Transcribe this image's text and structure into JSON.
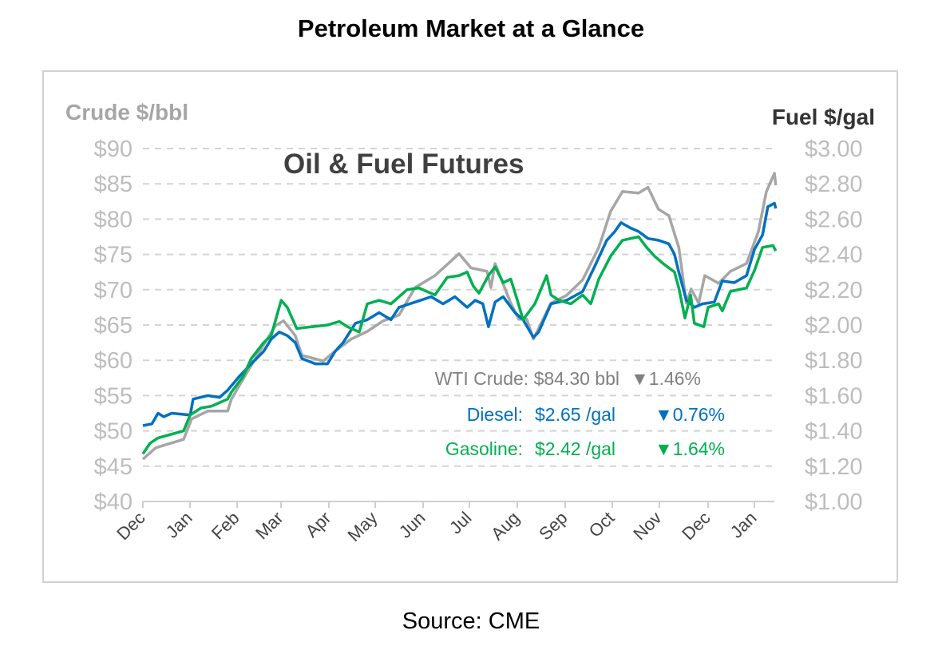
{
  "page_title": "Petroleum Market at a Glance",
  "source": "Source: CME",
  "chart_data": {
    "type": "line",
    "title": "Oil & Fuel Futures",
    "ylabel_left": "Crude $/bbl",
    "ylabel_right": "Fuel $/gal",
    "ylim_left": [
      40,
      90
    ],
    "ylim_right": [
      1.0,
      3.0
    ],
    "yticks_left": [
      "$40",
      "$45",
      "$50",
      "$55",
      "$60",
      "$65",
      "$70",
      "$75",
      "$80",
      "$85",
      "$90"
    ],
    "yticks_right": [
      "$1.00",
      "$1.20",
      "$1.40",
      "$1.60",
      "$1.80",
      "$2.00",
      "$2.20",
      "$2.40",
      "$2.60",
      "$2.80",
      "$3.00"
    ],
    "xticks": [
      "Dec",
      "Jan",
      "Feb",
      "Mar",
      "Apr",
      "May",
      "Jun",
      "Jul",
      "Aug",
      "Sep",
      "Oct",
      "Nov",
      "Dec",
      "Jan"
    ],
    "x_unit": "months since start",
    "grid": true,
    "colors": {
      "crude": "#a6a6a6",
      "diesel": "#0070c0",
      "gasoline": "#00b050"
    },
    "series": [
      {
        "name": "WTI Crude",
        "axis": "left",
        "color": "#a6a6a6",
        "x": [
          0,
          0.27,
          0.86,
          1.03,
          1.37,
          1.79,
          1.87,
          2.21,
          2.55,
          2.8,
          2.97,
          3.22,
          3.36,
          3.81,
          4.06,
          4.4,
          4.74,
          5.08,
          5.41,
          5.75,
          6.17,
          6.68,
          6.93,
          7.27,
          7.35,
          7.44,
          7.77,
          7.94,
          8.11,
          8.25,
          8.62,
          8.95,
          9.29,
          9.63,
          9.88,
          10.13,
          10.47,
          10.67,
          10.89,
          11.11,
          11.32,
          11.48,
          11.58,
          11.74,
          11.87,
          12.16,
          12.41,
          12.75,
          13.0,
          13.17,
          13.34,
          13.37
        ],
        "y": [
          46.0,
          47.6,
          48.8,
          51.7,
          52.8,
          52.8,
          54.5,
          58.4,
          62.2,
          64.9,
          65.6,
          63.5,
          60.7,
          59.9,
          61.3,
          63.0,
          64.1,
          65.6,
          66.4,
          70.3,
          72.0,
          75.1,
          73.1,
          72.6,
          70.3,
          73.7,
          68.1,
          65.8,
          65.8,
          63.0,
          68.1,
          69.2,
          71.4,
          76.0,
          81.1,
          83.9,
          83.7,
          84.5,
          81.4,
          80.5,
          76.0,
          68.1,
          70.1,
          68.1,
          72.0,
          70.9,
          72.6,
          73.7,
          78.2,
          83.9,
          86.5,
          84.8
        ]
      },
      {
        "name": "Diesel",
        "axis": "right",
        "color": "#0070c0",
        "x": [
          0,
          0.19,
          0.32,
          0.44,
          0.61,
          1.0,
          1.06,
          1.37,
          1.62,
          1.79,
          2.04,
          2.29,
          2.55,
          2.71,
          2.88,
          3.05,
          3.22,
          3.36,
          3.64,
          3.9,
          4.06,
          4.23,
          4.49,
          4.74,
          4.99,
          5.24,
          5.41,
          5.75,
          6.09,
          6.34,
          6.59,
          6.85,
          7.02,
          7.18,
          7.3,
          7.44,
          7.61,
          7.86,
          8.03,
          8.25,
          8.36,
          8.62,
          8.95,
          9.29,
          9.54,
          9.8,
          9.97,
          10.1,
          10.3,
          10.47,
          10.67,
          10.89,
          11.11,
          11.23,
          11.32,
          11.48,
          11.65,
          11.82,
          12.07,
          12.24,
          12.49,
          12.75,
          12.92,
          13.09,
          13.2,
          13.34,
          13.37
        ],
        "y": [
          1.43,
          1.44,
          1.5,
          1.48,
          1.5,
          1.49,
          1.58,
          1.6,
          1.59,
          1.63,
          1.71,
          1.78,
          1.85,
          1.92,
          1.96,
          1.94,
          1.9,
          1.81,
          1.78,
          1.78,
          1.85,
          1.9,
          2.01,
          2.03,
          2.07,
          2.03,
          2.1,
          2.13,
          2.16,
          2.12,
          2.16,
          2.1,
          2.14,
          2.12,
          1.99,
          2.13,
          2.16,
          2.07,
          2.03,
          1.93,
          1.96,
          2.12,
          2.14,
          2.19,
          2.33,
          2.48,
          2.53,
          2.58,
          2.55,
          2.53,
          2.49,
          2.48,
          2.46,
          2.4,
          2.3,
          2.14,
          2.1,
          2.12,
          2.13,
          2.25,
          2.24,
          2.28,
          2.43,
          2.51,
          2.67,
          2.69,
          2.66
        ]
      },
      {
        "name": "Gasoline",
        "axis": "right",
        "color": "#00b050",
        "x": [
          0,
          0.15,
          0.32,
          0.86,
          1.0,
          1.23,
          1.45,
          1.62,
          1.79,
          1.87,
          2.12,
          2.29,
          2.55,
          2.71,
          2.92,
          3.05,
          3.25,
          3.56,
          3.9,
          4.15,
          4.32,
          4.57,
          4.74,
          4.99,
          5.24,
          5.58,
          5.83,
          6.17,
          6.43,
          6.68,
          6.85,
          6.98,
          7.1,
          7.3,
          7.44,
          7.61,
          7.77,
          7.91,
          8.03,
          8.28,
          8.53,
          8.62,
          8.79,
          9.04,
          9.29,
          9.46,
          9.63,
          9.88,
          10.13,
          10.47,
          10.64,
          10.81,
          10.98,
          11.23,
          11.32,
          11.45,
          11.57,
          11.65,
          11.85,
          11.94,
          12.16,
          12.24,
          12.41,
          12.75,
          12.92,
          13.09,
          13.31,
          13.37
        ],
        "y": [
          1.27,
          1.33,
          1.36,
          1.4,
          1.49,
          1.53,
          1.54,
          1.56,
          1.58,
          1.62,
          1.71,
          1.81,
          1.9,
          1.94,
          2.14,
          2.1,
          1.98,
          1.99,
          2.0,
          2.02,
          1.99,
          1.96,
          2.12,
          2.14,
          2.12,
          2.2,
          2.21,
          2.17,
          2.27,
          2.28,
          2.3,
          2.22,
          2.18,
          2.28,
          2.33,
          2.24,
          2.26,
          2.14,
          2.03,
          2.12,
          2.28,
          2.17,
          2.14,
          2.12,
          2.17,
          2.12,
          2.26,
          2.39,
          2.48,
          2.5,
          2.44,
          2.39,
          2.35,
          2.3,
          2.21,
          2.04,
          2.17,
          2.01,
          1.99,
          2.1,
          2.12,
          2.08,
          2.19,
          2.21,
          2.31,
          2.44,
          2.45,
          2.42
        ]
      }
    ],
    "annotations": {
      "crude": {
        "label": "WTI Crude:",
        "price": "$84.30 bbl",
        "change": "1.46%",
        "arrow": "▼"
      },
      "diesel": {
        "label": "Diesel:",
        "price": "$2.65 /gal",
        "change": "0.76%",
        "arrow": "▼"
      },
      "gasoline": {
        "label": "Gasoline:",
        "price": "$2.42 /gal",
        "change": "1.64%",
        "arrow": "▼"
      }
    }
  }
}
